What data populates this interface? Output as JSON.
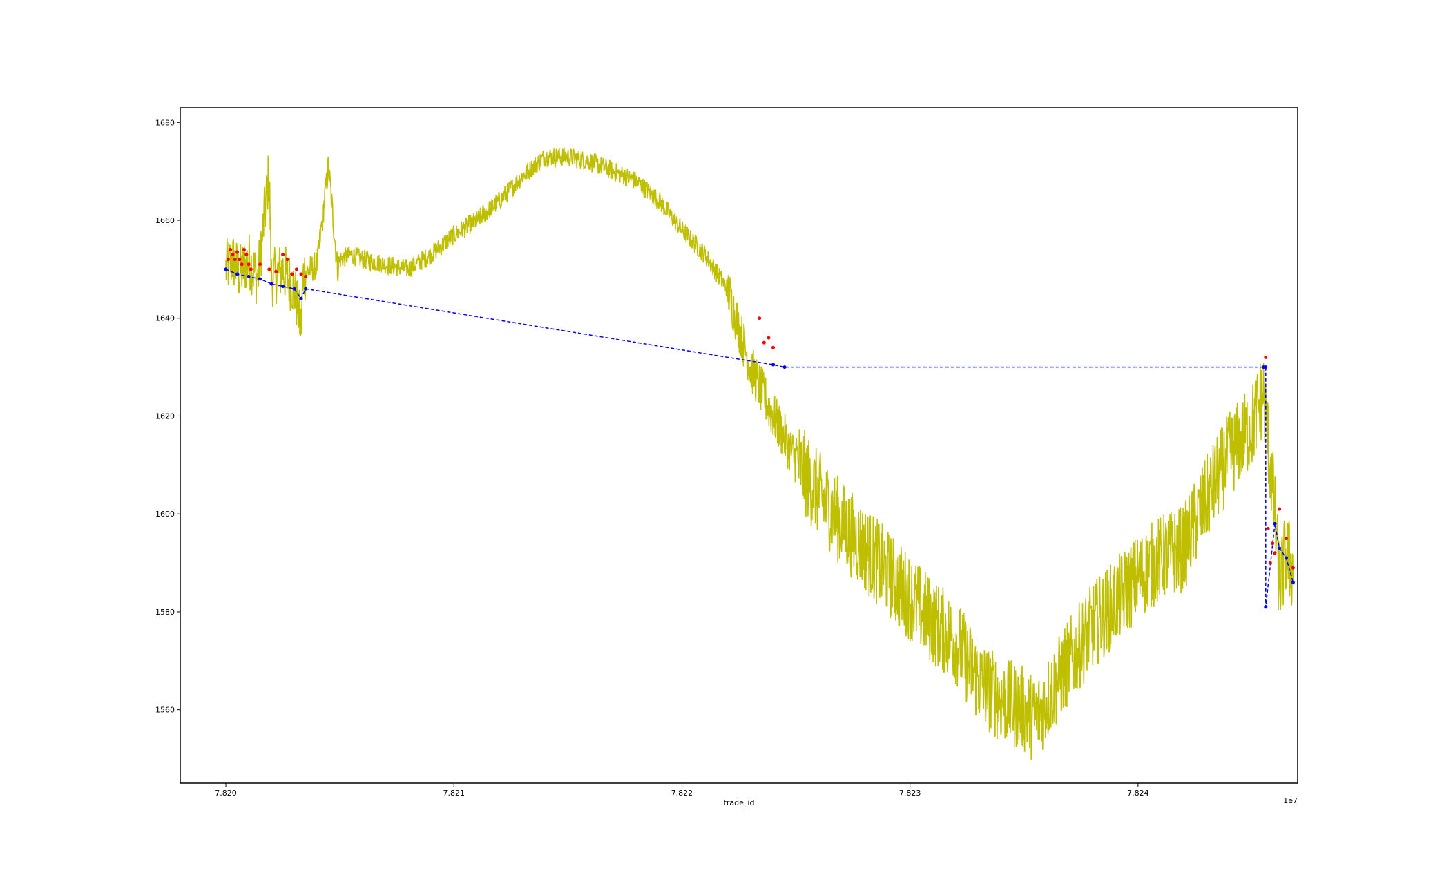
{
  "chart_data": {
    "type": "line",
    "title": "",
    "xlabel": "trade_id",
    "ylabel": "",
    "x_offset_label": "1e7",
    "xlim": [
      7.8198,
      7.8247
    ],
    "ylim": [
      1545,
      1683
    ],
    "x_ticks": [
      7.82,
      7.821,
      7.822,
      7.823,
      7.824
    ],
    "x_tick_labels": [
      "7.820",
      "7.821",
      "7.822",
      "7.823",
      "7.824"
    ],
    "y_ticks": [
      1560,
      1580,
      1600,
      1620,
      1640,
      1660,
      1680
    ],
    "y_tick_labels": [
      "1560",
      "1580",
      "1600",
      "1620",
      "1640",
      "1660",
      "1680"
    ],
    "grid": false,
    "legend": "none",
    "colors": {
      "price": "#bfbf00",
      "buy_line": "#0000ff",
      "buy_points": "#0000ff",
      "sell_points": "#ff0000"
    },
    "series": [
      {
        "style": "solid line",
        "x": [
          7.82,
          7.82003,
          7.82006,
          7.8201,
          7.82014,
          7.82019,
          7.8202,
          7.82025,
          7.8203,
          7.82033,
          7.82034,
          7.82037,
          7.8204,
          7.82045,
          7.82049,
          7.8205,
          7.82055,
          7.8206,
          7.8207,
          7.8208,
          7.8209,
          7.821,
          7.8211,
          7.8212,
          7.8213,
          7.8214,
          7.8215,
          7.8216,
          7.8217,
          7.8218,
          7.8219,
          7.822,
          7.8221,
          7.8222,
          7.82225,
          7.8223,
          7.8224,
          7.8225,
          7.8226,
          7.8227,
          7.8228,
          7.8229,
          7.823,
          7.8231,
          7.8232,
          7.8233,
          7.8234,
          7.8235,
          7.82355,
          7.8236,
          7.82365,
          7.8237,
          7.8238,
          7.8239,
          7.824,
          7.8241,
          7.8242,
          7.8243,
          7.8244,
          7.8245,
          7.82455,
          7.8246,
          7.82462,
          7.82465,
          7.82468
        ],
        "y": [
          1650,
          1652,
          1649,
          1652,
          1648,
          1670,
          1648,
          1650,
          1646,
          1638,
          1649,
          1650,
          1651,
          1671,
          1650,
          1652,
          1653,
          1652,
          1651,
          1650,
          1653,
          1657,
          1660,
          1664,
          1669,
          1673,
          1673,
          1672,
          1670,
          1668,
          1664,
          1658,
          1653,
          1646,
          1638,
          1630,
          1620,
          1611,
          1604,
          1598,
          1593,
          1588,
          1583,
          1578,
          1574,
          1566,
          1562,
          1560,
          1558,
          1562,
          1566,
          1570,
          1577,
          1582,
          1587,
          1591,
          1593,
          1603,
          1612,
          1618,
          1625,
          1600,
          1585,
          1592,
          1588
        ]
      },
      {
        "style": "dashed line with dots",
        "x": [
          7.82,
          7.82005,
          7.8201,
          7.82015,
          7.8202,
          7.82025,
          7.8203,
          7.82033,
          7.82035,
          7.8224,
          7.82245,
          7.82455,
          7.82456,
          7.82456,
          7.8246,
          7.82462,
          7.82465,
          7.82468
        ],
        "y": [
          1650,
          1649,
          1648.5,
          1648,
          1647,
          1646.5,
          1646,
          1644,
          1646,
          1630.5,
          1630,
          1630,
          1630,
          1581,
          1598,
          1593,
          1591,
          1586
        ]
      },
      {
        "style": "red dots",
        "x": [
          7.82001,
          7.82002,
          7.82003,
          7.82004,
          7.82005,
          7.82006,
          7.82007,
          7.82008,
          7.82009,
          7.8201,
          7.82011,
          7.82015,
          7.82019,
          7.82022,
          7.82025,
          7.82027,
          7.82029,
          7.82031,
          7.82033,
          7.82035,
          7.82234,
          7.82236,
          7.82238,
          7.8224,
          7.82456,
          7.82457,
          7.82458,
          7.82459,
          7.8246,
          7.82462,
          7.82465,
          7.82468
        ],
        "y": [
          1652,
          1654,
          1653,
          1652,
          1653.5,
          1652,
          1651,
          1654,
          1653,
          1651,
          1650,
          1651,
          1650,
          1649.5,
          1653,
          1652,
          1649,
          1650,
          1649,
          1648.5,
          1640,
          1635,
          1636,
          1634,
          1632,
          1597,
          1590,
          1594,
          1592,
          1601,
          1595,
          1589
        ]
      }
    ]
  }
}
